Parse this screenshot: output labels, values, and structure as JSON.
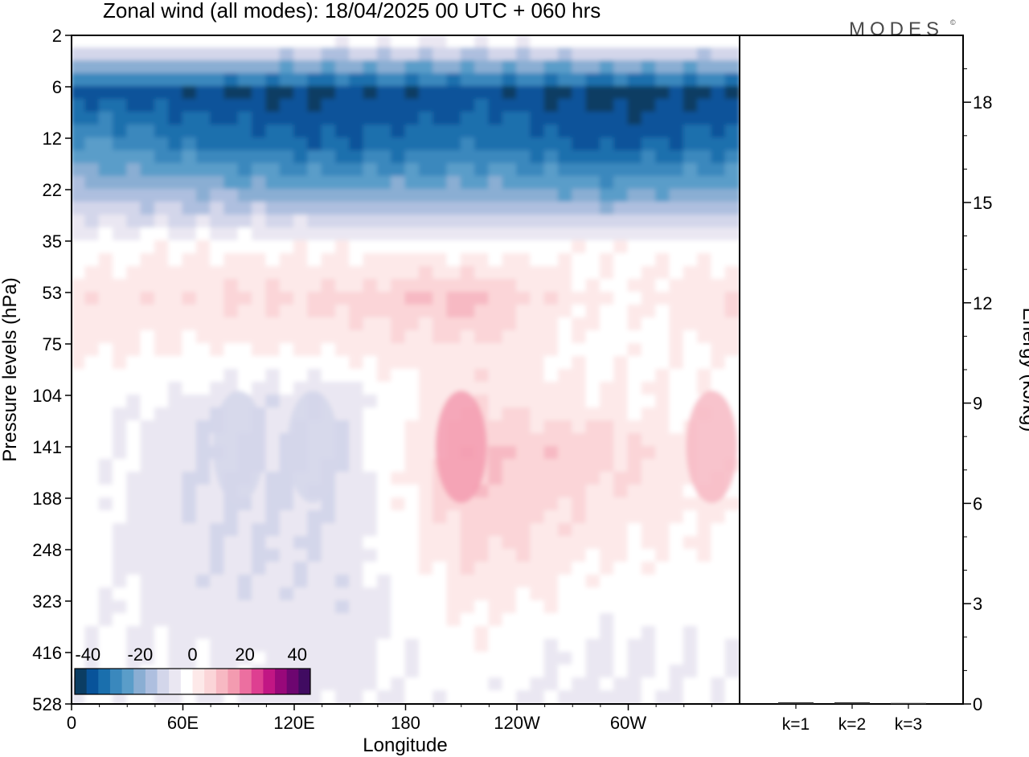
{
  "chart_data": [
    {
      "type": "heatmap",
      "title": "Zonal wind (all modes):  18/04/2025  00 UTC  + 060 hrs",
      "xlabel": "Longitude",
      "ylabel": "Pressure levels (hPa)",
      "x_ticks": [
        "0",
        "60E",
        "120E",
        "180",
        "120W",
        "60W"
      ],
      "x_tick_degrees": [
        0,
        60,
        120,
        180,
        240,
        300
      ],
      "xlim": [
        0,
        360
      ],
      "y_ticks": [
        "2",
        "6",
        "12",
        "22",
        "35",
        "53",
        "75",
        "104",
        "141",
        "188",
        "248",
        "323",
        "416",
        "528"
      ],
      "y_scale": "pressure levels, top 2 hPa to bottom 528 hPa",
      "colorbar": {
        "labels": [
          "-40",
          "-20",
          "0",
          "20",
          "40"
        ],
        "range": [
          -45,
          45
        ],
        "step": 5,
        "placement": "bottom-left",
        "colors": [
          "#0b3d63",
          "#08539a",
          "#1a6fad",
          "#3a88bd",
          "#5a9dc9",
          "#8aaed3",
          "#aebfdf",
          "#d3d6ea",
          "#eae7f2",
          "#ffffff",
          "#fde9e9",
          "#fbd5d8",
          "#f7b9c3",
          "#f39bb0",
          "#ec6fa0",
          "#de3f91",
          "#c11684",
          "#98087a",
          "#6d0670",
          "#400b61"
        ]
      },
      "field_levels": [
        {
          "level": "2",
          "value": [
            2,
            4,
            1,
            0,
            3,
            2
          ]
        },
        {
          "level": "6",
          "value": [
            -36,
            -40,
            -41,
            -38,
            -42,
            -40
          ]
        },
        {
          "level": "12",
          "value": [
            -24,
            -31,
            -35,
            -30,
            -36,
            -33
          ]
        },
        {
          "level": "22",
          "value": [
            -12,
            -15,
            -18,
            -17,
            -20,
            -17
          ]
        },
        {
          "level": "35",
          "value": [
            3,
            4,
            4,
            3,
            4,
            3
          ]
        },
        {
          "level": "53",
          "value": [
            9,
            10,
            11,
            17,
            4,
            10
          ]
        },
        {
          "level": "75",
          "value": [
            5,
            5,
            6,
            9,
            3,
            6
          ]
        },
        {
          "level": "104",
          "value": [
            3,
            -3,
            -4,
            9,
            6,
            2
          ]
        },
        {
          "level": "141",
          "value": [
            4,
            -6,
            -5,
            16,
            12,
            3
          ]
        },
        {
          "level": "188",
          "value": [
            3,
            -5,
            -5,
            14,
            9,
            5
          ]
        },
        {
          "level": "248",
          "value": [
            3,
            -5,
            -4,
            11,
            5,
            3
          ]
        },
        {
          "level": "323",
          "value": [
            2,
            -3,
            -4,
            6,
            2,
            2
          ]
        },
        {
          "level": "416",
          "value": [
            1,
            -1,
            -2,
            3,
            -1,
            1
          ]
        },
        {
          "level": "528",
          "value": [
            1,
            -1,
            -1,
            1,
            -2,
            1
          ]
        }
      ],
      "features": [
        {
          "desc": "westerly maximum",
          "lon_deg": 210,
          "level": "141",
          "value": 22
        },
        {
          "desc": "westerly maximum",
          "lon_deg": 345,
          "level": "141",
          "value": 16
        },
        {
          "desc": "easterly core",
          "lon_deg": 90,
          "level": "141",
          "value": -9
        },
        {
          "desc": "easterly core",
          "lon_deg": 130,
          "level": "141",
          "value": -8
        }
      ]
    },
    {
      "type": "bar",
      "ylabel": "Energy (kJ/kg)",
      "categories": [
        "k=1",
        "k=2",
        "k=3"
      ],
      "values": [
        0.05,
        0.05,
        0.03
      ],
      "y_ticks": [
        "0",
        "3",
        "6",
        "9",
        "12",
        "15",
        "18"
      ],
      "ylim": [
        0,
        20
      ]
    }
  ],
  "logo": {
    "text": "MODES",
    "mark": "©"
  }
}
